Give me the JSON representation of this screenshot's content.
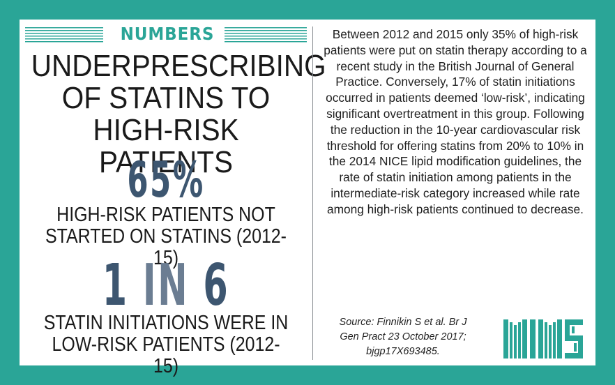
{
  "banner": {
    "title": "NUMBERS"
  },
  "headline": {
    "line1": "UNDERPRESCRIBING",
    "line2": "OF STATINS TO",
    "line3": "HIGH-RISK PATIENTS"
  },
  "stat1": {
    "value": "65%",
    "caption_line1": "HIGH-RISK PATIENTS NOT",
    "caption_line2": "STARTED ON STATINS (2012-15)"
  },
  "stat2": {
    "value_a": "1",
    "value_in": "IN",
    "value_b": "6",
    "caption_line1": "STATIN INITIATIONS WERE IN",
    "caption_line2": "LOW-RISK PATIENTS (2012-15)"
  },
  "article": {
    "body": "Between 2012 and 2015 only 35% of high-risk patients were put on statin therapy according to a recent study in the British Journal of General Practice. Conversely, 17% of statin initiations occurred in patients deemed ‘low-risk’, indicating significant overtreatment in this group. Following the reduction in the 10-year cardiovascular risk threshold for offering statins from 20% to 10% in the 2014 NICE lipid modification guidelines, the rate of statin initiation among patients in the intermediate-risk category increased while rate among high-risk patients continued to decrease.",
    "source_line1": "Source: Finnikin S et al. Br J",
    "source_line2": "Gen Pract 23 October 2017;",
    "source_line3": "bjgp17X693485."
  },
  "logo": {
    "text": "MIMS"
  },
  "colors": {
    "teal": "#2aa597",
    "slate": "#3d5670",
    "slate_light": "#6b7d92"
  }
}
